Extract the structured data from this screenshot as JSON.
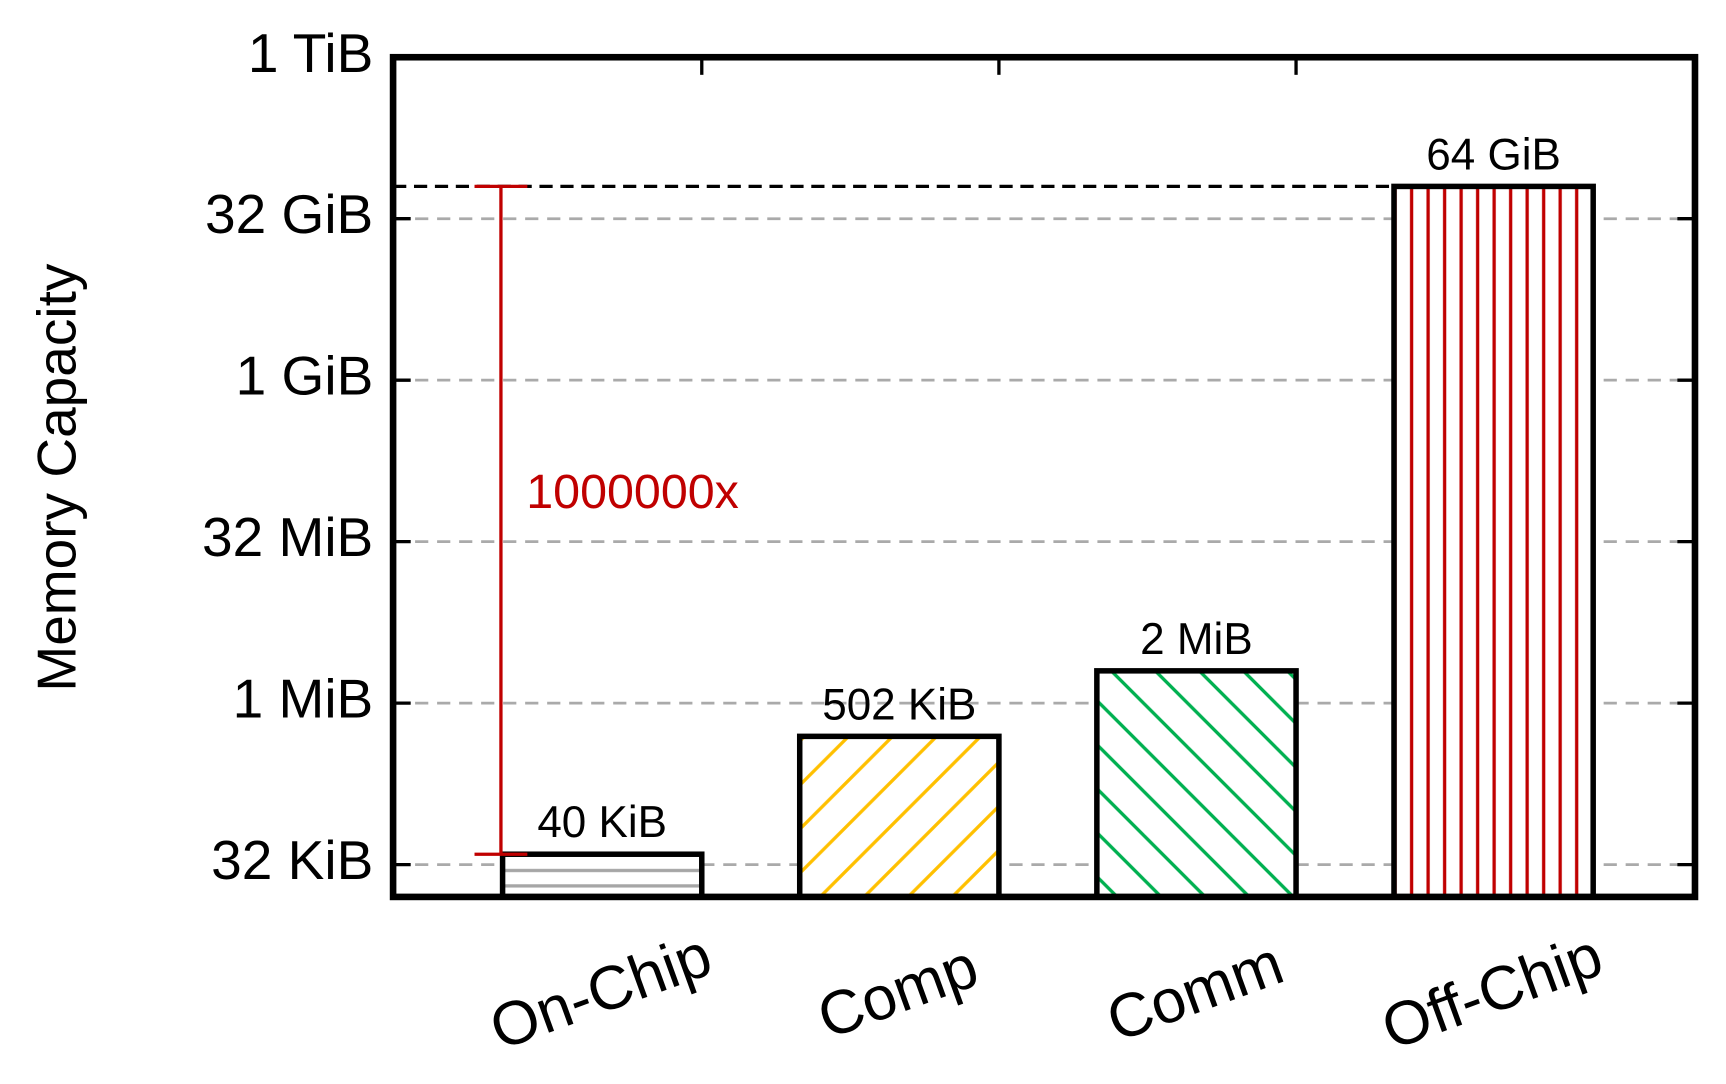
{
  "chart_data": {
    "type": "bar",
    "y_label": "Memory Capacity",
    "categories": [
      "On-Chip",
      "Comp",
      "Comm",
      "Off-Chip"
    ],
    "values": [
      40,
      502,
      2048,
      67108864
    ],
    "value_labels": [
      "40 KiB",
      "502 KiB",
      "2 MiB",
      "64 GiB"
    ],
    "colors": [
      "#a6a6a6",
      "#ffc000",
      "#00b050",
      "#c00000"
    ],
    "patterns": [
      "horizontal",
      "diagonal-up",
      "diagonal-down",
      "vertical"
    ],
    "log_scale": true,
    "grid": true,
    "ylim": [
      16,
      1073741824
    ],
    "yticks": [
      {
        "value": 32,
        "label": "32 KiB"
      },
      {
        "value": 1024,
        "label": "1 MiB"
      },
      {
        "value": 32768,
        "label": "32 MiB"
      },
      {
        "value": 1048576,
        "label": "1 GiB"
      },
      {
        "value": 33554432,
        "label": "32 GiB"
      },
      {
        "value": 1073741824,
        "label": "1 TiB"
      }
    ],
    "annotation": {
      "text": "1000000x",
      "color": "#c00000"
    }
  }
}
